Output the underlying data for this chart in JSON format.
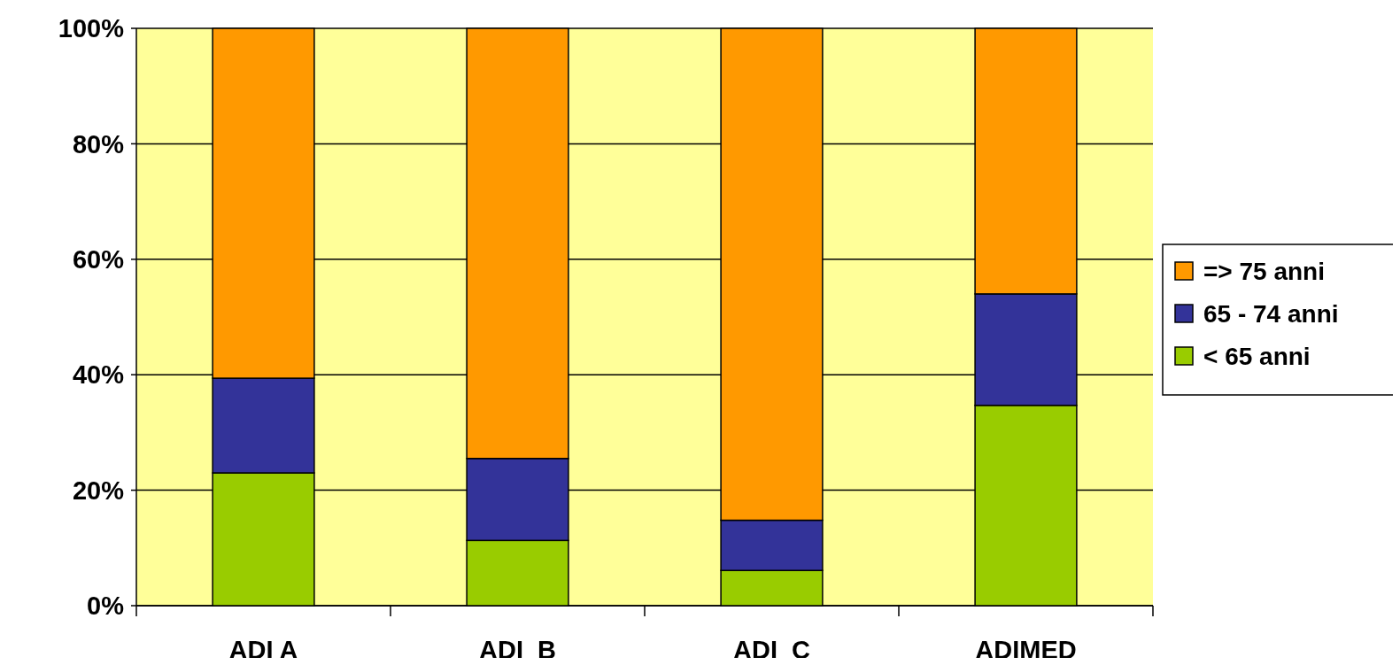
{
  "chart_data": {
    "type": "bar",
    "stacked": true,
    "categories": [
      "ADI A",
      "ADI  B",
      "ADI  C",
      "ADIMED"
    ],
    "series": [
      {
        "name": "< 65 anni",
        "color": "#99cc00",
        "values": [
          23,
          11.3,
          6.1,
          34.7
        ]
      },
      {
        "name": "65 - 74 anni",
        "color": "#333399",
        "values": [
          16.4,
          14.2,
          8.7,
          19.3
        ]
      },
      {
        "name": "=> 75 anni",
        "color": "#ff9900",
        "values": [
          60.6,
          74.5,
          85.2,
          46
        ]
      }
    ],
    "ylim": [
      0,
      100
    ],
    "yticks": [
      {
        "value": 0,
        "label": "0%"
      },
      {
        "value": 20,
        "label": "20%"
      },
      {
        "value": 40,
        "label": "40%"
      },
      {
        "value": 60,
        "label": "60%"
      },
      {
        "value": 80,
        "label": "80%"
      },
      {
        "value": 100,
        "label": "100%"
      }
    ],
    "grid": "y",
    "legend": "right"
  }
}
